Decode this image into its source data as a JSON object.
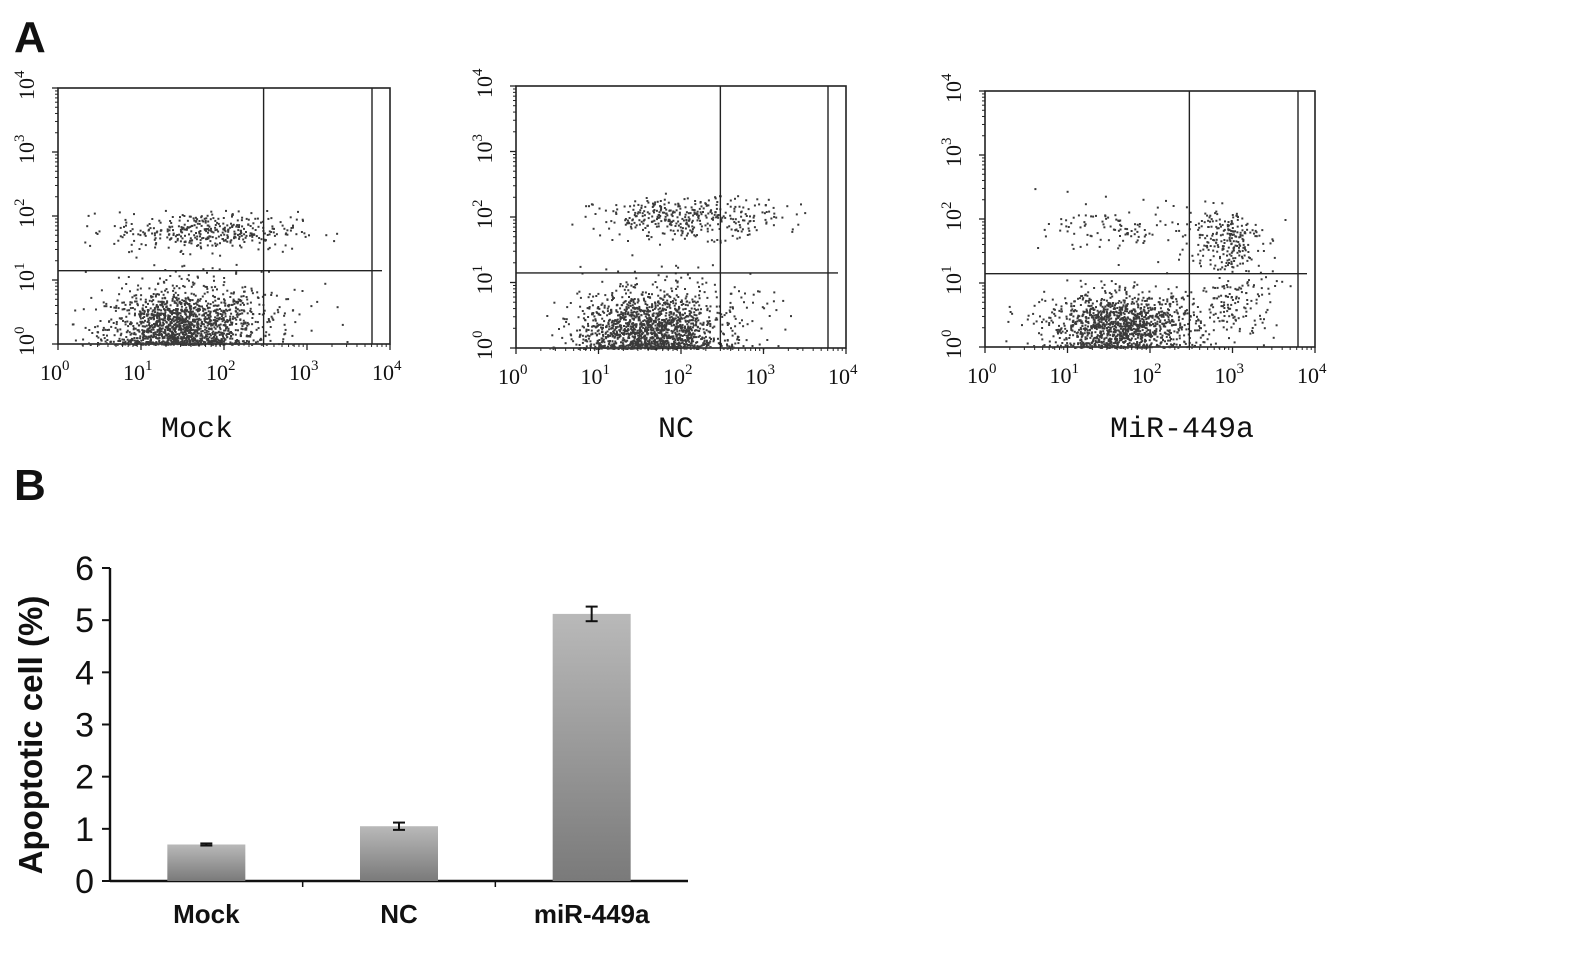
{
  "panels": {
    "a": "A",
    "b": "B"
  },
  "flow_plots": [
    {
      "title": "Mock"
    },
    {
      "title": "NC"
    },
    {
      "title": "MiR-449a"
    }
  ],
  "flow_axis_ticks": {
    "base": [
      "10",
      "10",
      "10",
      "10",
      "10"
    ],
    "exponents": [
      "0",
      "1",
      "2",
      "3",
      "4"
    ]
  },
  "chart_data": [
    {
      "type": "scatter",
      "title": "Mock",
      "xscale": "log",
      "yscale": "log",
      "xlim": [
        1,
        10000
      ],
      "ylim": [
        1,
        10000
      ],
      "quadrant_x": 300,
      "quadrant_y": 14,
      "clusters": [
        {
          "name": "live",
          "x_center": 30,
          "y_center": 1.8,
          "spread_x_decades": 0.45,
          "spread_y_decades": 0.28,
          "points": 1400
        },
        {
          "name": "upper",
          "x_center": 60,
          "y_center": 60,
          "spread_x_decades": 0.55,
          "spread_y_decades": 0.15,
          "points": 380
        },
        {
          "name": "scattered-low",
          "x_center": 60,
          "y_center": 4,
          "spread_x_decades": 0.6,
          "spread_y_decades": 0.35,
          "points": 240
        }
      ]
    },
    {
      "type": "scatter",
      "title": "NC",
      "xscale": "log",
      "yscale": "log",
      "xlim": [
        1,
        10000
      ],
      "ylim": [
        1,
        10000
      ],
      "quadrant_x": 300,
      "quadrant_y": 14,
      "clusters": [
        {
          "name": "live",
          "x_center": 40,
          "y_center": 1.8,
          "spread_x_decades": 0.42,
          "spread_y_decades": 0.28,
          "points": 1400
        },
        {
          "name": "upper",
          "x_center": 120,
          "y_center": 100,
          "spread_x_decades": 0.55,
          "spread_y_decades": 0.15,
          "points": 380
        },
        {
          "name": "scattered-low",
          "x_center": 80,
          "y_center": 4,
          "spread_x_decades": 0.6,
          "spread_y_decades": 0.35,
          "points": 240
        }
      ]
    },
    {
      "type": "scatter",
      "title": "MiR-449a",
      "xscale": "log",
      "yscale": "log",
      "xlim": [
        1,
        10000
      ],
      "ylim": [
        1,
        10000
      ],
      "quadrant_x": 300,
      "quadrant_y": 14,
      "clusters": [
        {
          "name": "live",
          "x_center": 45,
          "y_center": 2.2,
          "spread_x_decades": 0.45,
          "spread_y_decades": 0.25,
          "points": 1300
        },
        {
          "name": "upper-right",
          "x_center": 800,
          "y_center": 50,
          "spread_x_decades": 0.22,
          "spread_y_decades": 0.25,
          "points": 220
        },
        {
          "name": "upper-left",
          "x_center": 60,
          "y_center": 70,
          "spread_x_decades": 0.5,
          "spread_y_decades": 0.2,
          "points": 120
        },
        {
          "name": "lower-right",
          "x_center": 1000,
          "y_center": 5,
          "spread_x_decades": 0.25,
          "spread_y_decades": 0.3,
          "points": 150
        }
      ]
    },
    {
      "type": "bar",
      "categories": [
        "Mock",
        "NC",
        "miR-449a"
      ],
      "values": [
        0.7,
        1.05,
        5.12
      ],
      "errors": [
        0.02,
        0.07,
        0.14
      ],
      "ylabel": "Apoptotic cell (%)",
      "xlabel": "",
      "ylim": [
        0,
        6
      ],
      "yticks": [
        "0",
        "1",
        "2",
        "3",
        "4",
        "5",
        "6"
      ],
      "grid": false,
      "colors": {
        "bar_top": "#b9b9b9",
        "bar_bottom": "#7a7a7a",
        "axis": "#111111"
      }
    }
  ]
}
